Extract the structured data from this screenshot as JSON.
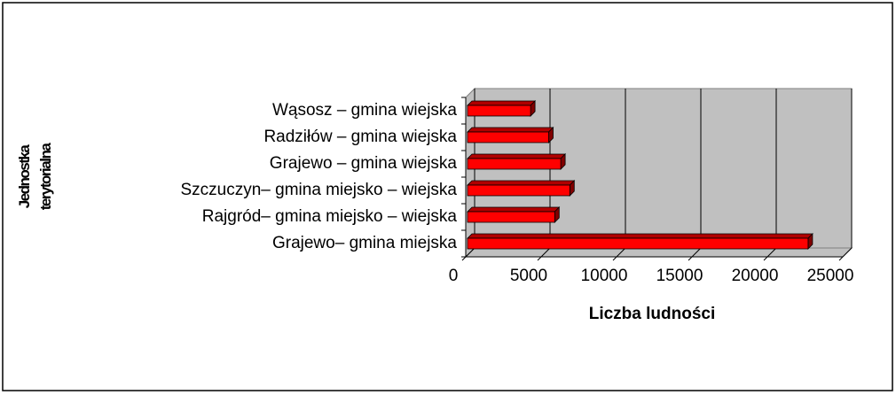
{
  "chart_data": {
    "type": "bar3d_horizontal",
    "categories": [
      "Wąsosz – gmina wiejska",
      "Radziłów – gmina wiejska",
      "Grajewo – gmina wiejska",
      "Szczuczyn– gmina miejsko – wiejska",
      "Rajgród– gmina miejsko – wiejska",
      "Grajewo– gmina miejska"
    ],
    "values": [
      4300,
      5500,
      6300,
      6900,
      5900,
      22700
    ],
    "color": "#ff0000",
    "xlim": [
      0,
      25000
    ],
    "xticks": [
      0,
      5000,
      10000,
      15000,
      20000,
      25000
    ],
    "x_label": "Liczba ludności",
    "y_label": "Jednostka terytorialna",
    "grid": true
  }
}
